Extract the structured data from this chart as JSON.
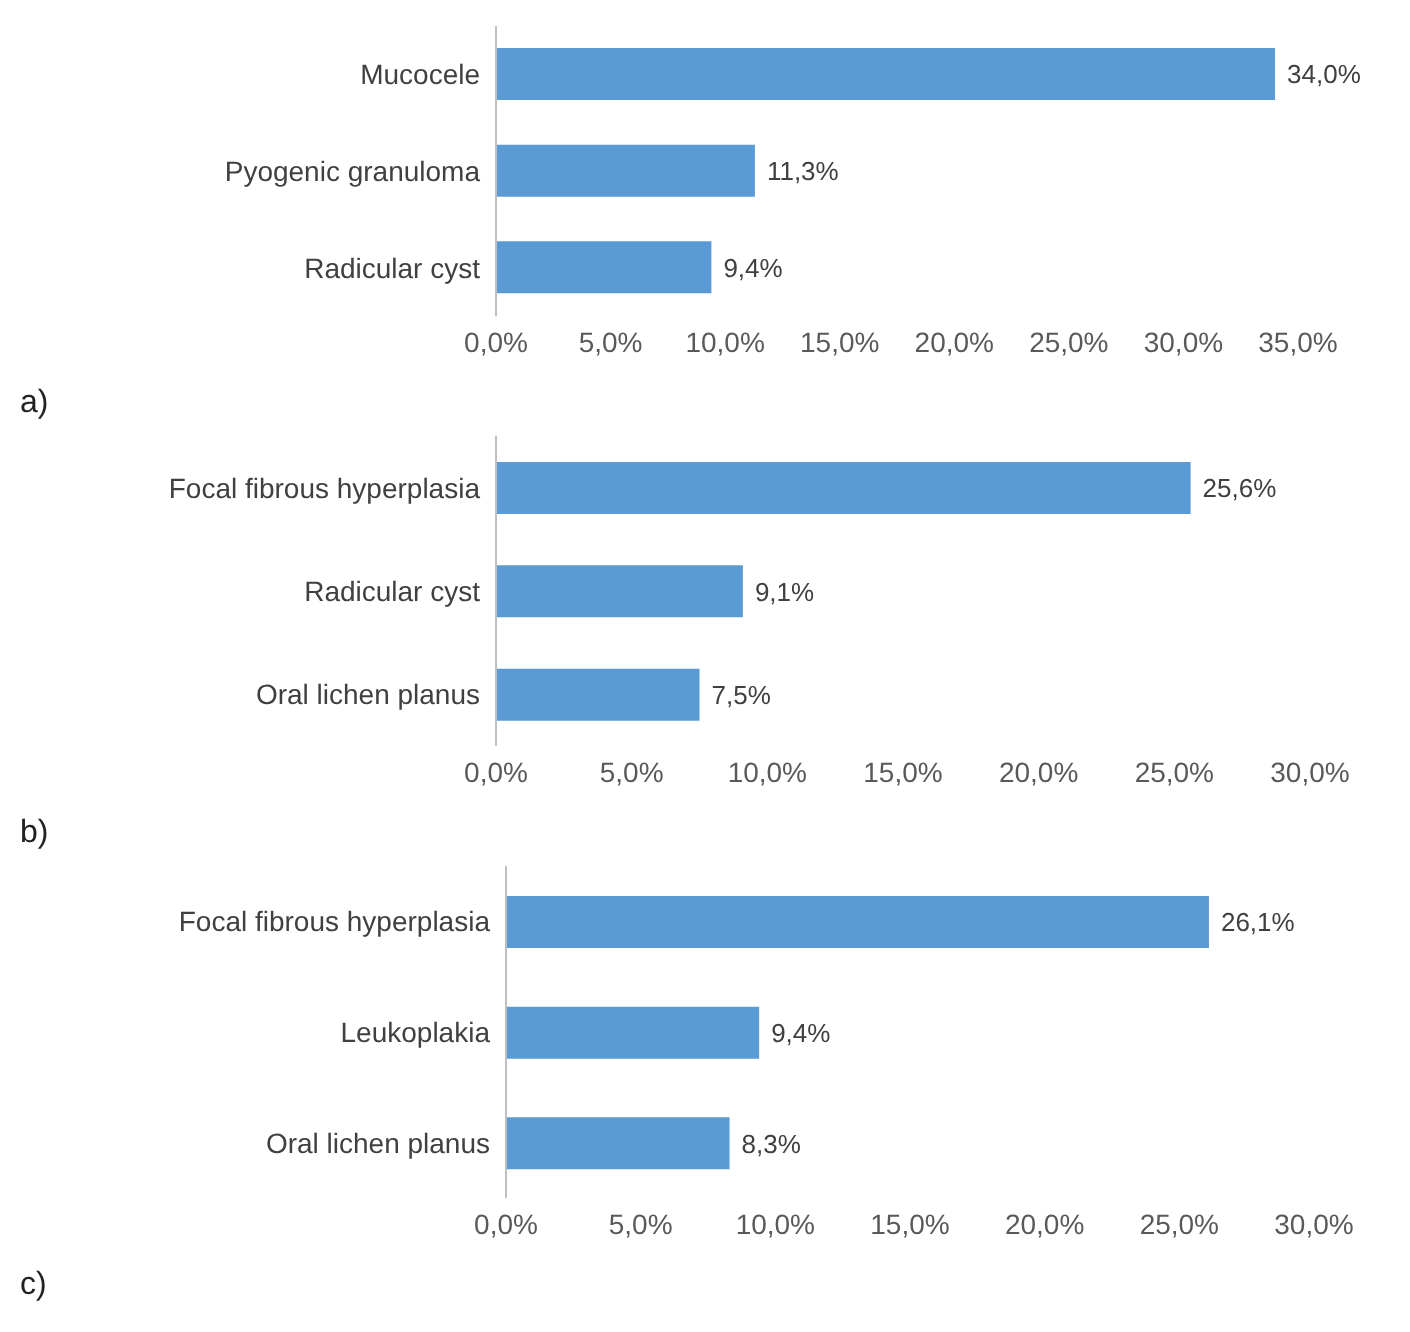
{
  "chart_data": [
    {
      "type": "bar",
      "orientation": "horizontal",
      "categories": [
        "Mucocele",
        "Pyogenic granuloma",
        "Radicular cyst"
      ],
      "values": [
        34.0,
        11.3,
        9.4
      ],
      "value_labels": [
        "34,0%",
        "11,3%",
        "9,4%"
      ],
      "color": "#5b9bd5",
      "xlim": [
        0,
        35
      ],
      "xticks": [
        {
          "value": 0,
          "label": "0,0%"
        },
        {
          "value": 5,
          "label": "5,0%"
        },
        {
          "value": 10,
          "label": "10,0%"
        },
        {
          "value": 15,
          "label": "15,0%"
        },
        {
          "value": 20,
          "label": "20,0%"
        },
        {
          "value": 25,
          "label": "25,0%"
        },
        {
          "value": 30,
          "label": "30,0%"
        },
        {
          "value": 35,
          "label": "35,0%"
        }
      ],
      "annotations": [
        "a)"
      ]
    },
    {
      "type": "bar",
      "orientation": "horizontal",
      "categories": [
        "Focal fibrous hyperplasia",
        "Radicular cyst",
        "Oral lichen planus"
      ],
      "values": [
        25.6,
        9.1,
        7.5
      ],
      "value_labels": [
        "25,6%",
        "9,1%",
        "7,5%"
      ],
      "color": "#5b9bd5",
      "xlim": [
        0,
        30
      ],
      "xticks": [
        {
          "value": 0,
          "label": "0,0%"
        },
        {
          "value": 5,
          "label": "5,0%"
        },
        {
          "value": 10,
          "label": "10,0%"
        },
        {
          "value": 15,
          "label": "15,0%"
        },
        {
          "value": 20,
          "label": "20,0%"
        },
        {
          "value": 25,
          "label": "25,0%"
        },
        {
          "value": 30,
          "label": "30,0%"
        }
      ],
      "annotations": [
        "b)"
      ]
    },
    {
      "type": "bar",
      "orientation": "horizontal",
      "categories": [
        "Focal fibrous hyperplasia",
        "Leukoplakia",
        "Oral lichen planus"
      ],
      "values": [
        26.1,
        9.4,
        8.3
      ],
      "value_labels": [
        "26,1%",
        "9,4%",
        "8,3%"
      ],
      "color": "#5b9bd5",
      "xlim": [
        0,
        30
      ],
      "xticks": [
        {
          "value": 0,
          "label": "0,0%"
        },
        {
          "value": 5,
          "label": "5,0%"
        },
        {
          "value": 10,
          "label": "10,0%"
        },
        {
          "value": 15,
          "label": "15,0%"
        },
        {
          "value": 20,
          "label": "20,0%"
        },
        {
          "value": 25,
          "label": "25,0%"
        },
        {
          "value": 30,
          "label": "30,0%"
        }
      ],
      "annotations": [
        "c)"
      ]
    }
  ]
}
